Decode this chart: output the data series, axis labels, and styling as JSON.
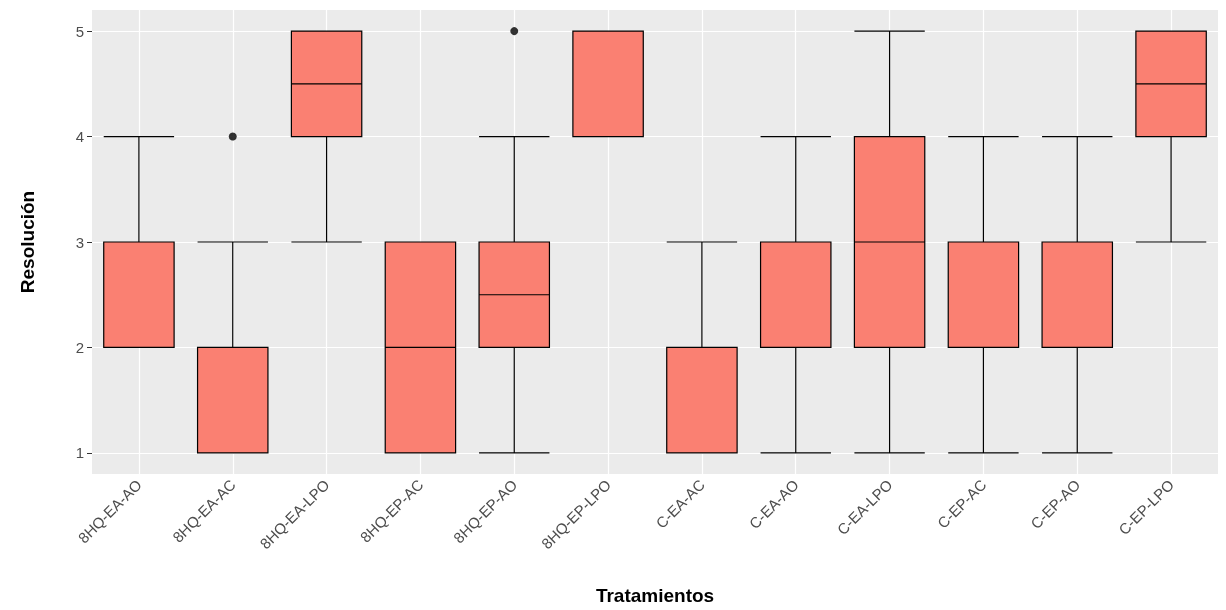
{
  "chart_data": {
    "type": "box",
    "xlabel": "Tratamientos",
    "ylabel": "Resolución",
    "categories": [
      "8HQ-EA-AO",
      "8HQ-EA-AC",
      "8HQ-EA-LPO",
      "8HQ-EP-AC",
      "8HQ-EP-AO",
      "8HQ-EP-LPO",
      "C-EA-AC",
      "C-EA-AO",
      "C-EA-LPO",
      "C-EP-AC",
      "C-EP-AO",
      "C-EP-LPO"
    ],
    "color": "#fa8072",
    "boxes": [
      {
        "low": 2,
        "q1": 2,
        "median": 3,
        "q3": 3,
        "high": 4
      },
      {
        "low": 1,
        "q1": 1,
        "median": 1,
        "q3": 2,
        "high": 3,
        "outliers": [
          4
        ]
      },
      {
        "low": 3,
        "q1": 4,
        "median": 4.5,
        "q3": 5,
        "high": 5
      },
      {
        "low": 1,
        "q1": 1,
        "median": 2,
        "q3": 3,
        "high": 3
      },
      {
        "low": 1,
        "q1": 2,
        "median": 2.5,
        "q3": 3,
        "high": 4,
        "outliers": [
          5
        ]
      },
      {
        "low": 4,
        "q1": 4,
        "median": 5,
        "q3": 5,
        "high": 5
      },
      {
        "low": 1,
        "q1": 1,
        "median": 2,
        "q3": 2,
        "high": 3
      },
      {
        "low": 1,
        "q1": 2,
        "median": 3,
        "q3": 3,
        "high": 4
      },
      {
        "low": 1,
        "q1": 2,
        "median": 3,
        "q3": 4,
        "high": 5
      },
      {
        "low": 1,
        "q1": 2,
        "median": 2,
        "q3": 3,
        "high": 4
      },
      {
        "low": 1,
        "q1": 2,
        "median": 3,
        "q3": 3,
        "high": 4
      },
      {
        "low": 3,
        "q1": 4,
        "median": 4.5,
        "q3": 5,
        "high": 5
      }
    ],
    "ylim": [
      0.8,
      5.2
    ],
    "yticks": [
      1,
      2,
      3,
      4,
      5
    ],
    "grid": true
  }
}
